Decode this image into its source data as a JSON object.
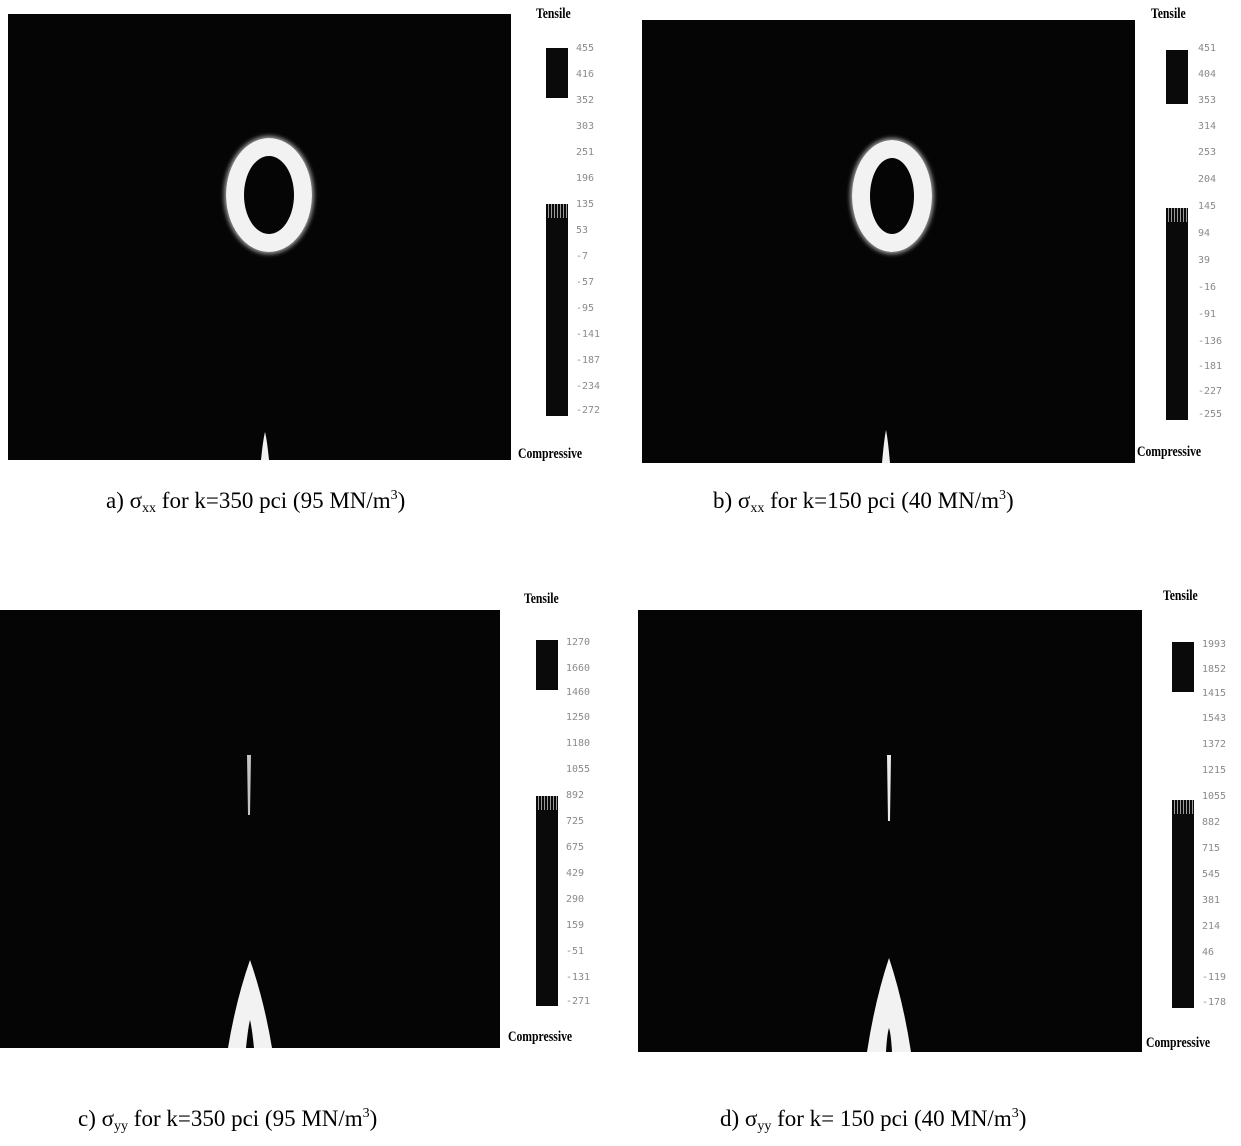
{
  "colors": {
    "background": "#050505",
    "contour": "#f2f2f2"
  },
  "panels": [
    {
      "id": "a",
      "tensile_label": "Tensile",
      "compressive_label": "Compressive",
      "ticks": [
        "455",
        "416",
        "352",
        "303",
        "251",
        "196",
        "135",
        "53",
        "-7",
        "-57",
        "-95",
        "-141",
        "-187",
        "-234",
        "-272"
      ],
      "caption": {
        "prefix": "a)  ",
        "sigma": "σ",
        "sub": "xx",
        "middle": " for k=350 pci (95 MN/m",
        "sup": "3",
        "suffix": ")"
      }
    },
    {
      "id": "b",
      "tensile_label": "Tensile",
      "compressive_label": "Compressive",
      "ticks": [
        "451",
        "404",
        "353",
        "314",
        "253",
        "204",
        "145",
        "94",
        "39",
        "-16",
        "-91",
        "-136",
        "-181",
        "-227",
        "-255"
      ],
      "caption": {
        "prefix": "b) ",
        "sigma": "σ",
        "sub": "xx",
        "middle": " for k=150 pci (40 MN/m",
        "sup": "3",
        "suffix": ")"
      }
    },
    {
      "id": "c",
      "tensile_label": "Tensile",
      "compressive_label": "Compressive",
      "ticks": [
        "1270",
        "1660",
        "1460",
        "1250",
        "1180",
        "1055",
        "892",
        "725",
        "675",
        "429",
        "290",
        "159",
        "-51",
        "-131",
        "-271"
      ],
      "caption": {
        "prefix": "c)  ",
        "sigma": "σ",
        "sub": "yy",
        "middle": " for k=350 pci (95 MN/m",
        "sup": "3",
        "suffix": ")"
      }
    },
    {
      "id": "d",
      "tensile_label": "Tensile",
      "compressive_label": "Compressive",
      "ticks": [
        "1993",
        "1852",
        "1415",
        "1543",
        "1372",
        "1215",
        "1055",
        "882",
        "715",
        "545",
        "381",
        "214",
        "46",
        "-119",
        "-178"
      ],
      "caption": {
        "prefix": "d) ",
        "sigma": "σ",
        "sub": "yy",
        "middle": " for k= 150 pci (40 MN/m",
        "sup": "3",
        "suffix": ")"
      }
    }
  ]
}
